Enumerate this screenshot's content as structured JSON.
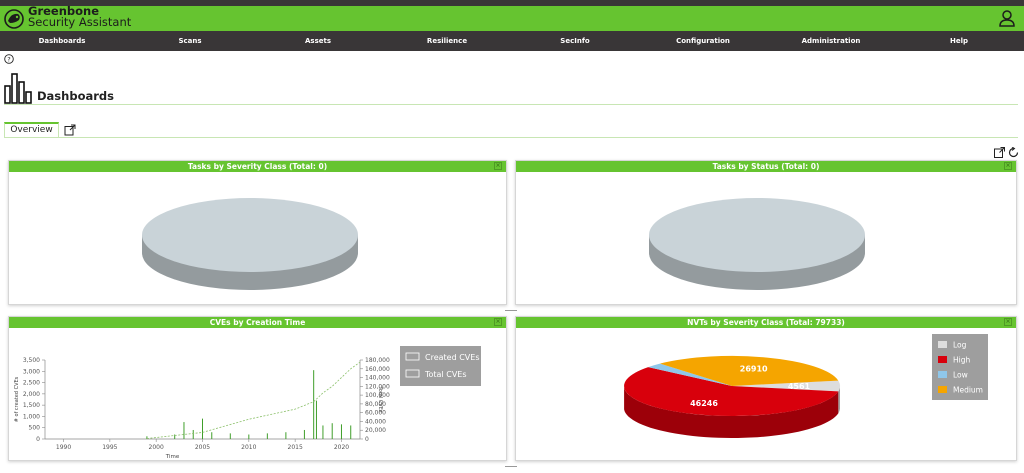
{
  "app": {
    "brand_line1": "Greenbone",
    "brand_line2": "Security Assistant"
  },
  "nav": {
    "items": [
      {
        "label": "Dashboards"
      },
      {
        "label": "Scans"
      },
      {
        "label": "Assets"
      },
      {
        "label": "Resilience"
      },
      {
        "label": "SecInfo"
      },
      {
        "label": "Configuration"
      },
      {
        "label": "Administration"
      },
      {
        "label": "Help"
      }
    ]
  },
  "page": {
    "title": "Dashboards",
    "tab_overview": "Overview"
  },
  "panels": {
    "tasks_severity": {
      "title": "Tasks by Severity Class (Total: 0)",
      "close": "×"
    },
    "tasks_status": {
      "title": "Tasks by Status (Total: 0)",
      "close": "×"
    },
    "cves_time": {
      "title": "CVEs by Creation Time",
      "close": "×"
    },
    "nvts_severity": {
      "title": "NVTs by Severity Class (Total: 79733)",
      "close": "×"
    }
  },
  "colors": {
    "accent_green": "#66c430",
    "nav_dark": "#393637",
    "empty_pie_top": "#c9d3d8",
    "empty_pie_side": "#949b9e",
    "log": "#dddddd",
    "high": "#d8000c",
    "low": "#8fc7ea",
    "medium": "#f5a500"
  },
  "chart_data": [
    {
      "type": "bar",
      "chart": "CVEs by Creation Time",
      "xlabel": "Time",
      "ylabel": "# of created CVEs",
      "y2label": "Total CVEs",
      "x_ticks": [
        "1990",
        "1995",
        "2000",
        "2005",
        "2010",
        "2015",
        "2020"
      ],
      "y_ticks": [
        "0",
        "500",
        "1,000",
        "1,500",
        "2,000",
        "2,500",
        "3,000",
        "3,500"
      ],
      "y2_ticks": [
        "0",
        "20,000",
        "40,000",
        "60,000",
        "80,000",
        "100,000",
        "120,000",
        "140,000",
        "160,000",
        "180,000"
      ],
      "ylim": [
        0,
        3500
      ],
      "y2lim": [
        0,
        180000
      ],
      "xlim": [
        1988,
        2022
      ],
      "legend": [
        "Created CVEs",
        "Total CVEs"
      ],
      "legend_position": "top-right",
      "series": [
        {
          "name": "Created CVEs",
          "x": [
            1999,
            2002,
            2003,
            2004,
            2005,
            2006,
            2008,
            2010,
            2012,
            2014,
            2016,
            2017,
            2017.3,
            2018,
            2019,
            2020,
            2021
          ],
          "values": [
            120,
            200,
            750,
            400,
            900,
            300,
            250,
            200,
            250,
            300,
            400,
            3050,
            1700,
            600,
            700,
            650,
            600
          ]
        },
        {
          "name": "Total CVEs",
          "x": [
            1999,
            2005,
            2010,
            2015,
            2017,
            2018,
            2019,
            2020,
            2021,
            2022
          ],
          "values": [
            1000,
            15000,
            45000,
            68000,
            85000,
            105000,
            120000,
            140000,
            160000,
            175000
          ]
        }
      ]
    },
    {
      "type": "pie",
      "chart": "NVTs by Severity Class (Total: 79733)",
      "categories": [
        "Log",
        "High",
        "Low",
        "Medium"
      ],
      "values": [
        4561,
        46246,
        2016,
        26910
      ],
      "labels": [
        "4561",
        "46246",
        "",
        "26910"
      ],
      "legend_position": "right"
    }
  ]
}
